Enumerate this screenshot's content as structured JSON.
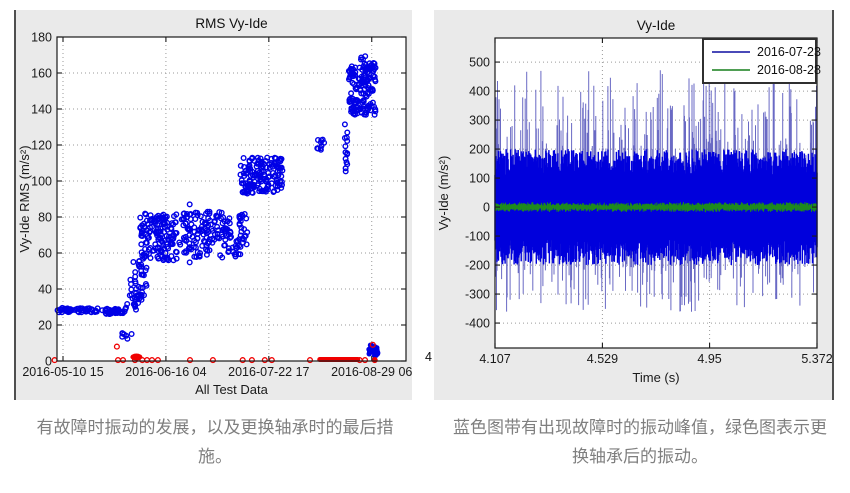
{
  "captions": {
    "left": "有故障时振动的发展，以及更换轴承时的最后措施。",
    "right": "蓝色图带有出现故障时的振动峰值，绿色图表示更换轴承后的振动。"
  },
  "colors": {
    "figure_bg": "#EAEAEA",
    "plot_bg": "#FFFFFF",
    "grid": "#9a9a9a",
    "axis": "#1a1a1a",
    "scatter_blue": "#0000E6",
    "marker_red": "#F00000",
    "signal_blue": "#0000DC",
    "signal_blue_light": "#6a6ac4",
    "signal_green": "#1E8A1E",
    "legend_blue": "#4A4AB8",
    "legend_green": "#4F9E53"
  },
  "chart_data": [
    {
      "type": "scatter",
      "title": "RMS Vy-Ide",
      "xlabel": "All Test Data",
      "ylabel": "Vy-Ide RMS  (m/s²)",
      "x_unit": "days since 2016-05-10 15:00",
      "xlim": [
        -2.15,
        122.9
      ],
      "ylim": [
        0,
        180
      ],
      "yticks": [
        0,
        20,
        40,
        60,
        80,
        100,
        120,
        140,
        160,
        180
      ],
      "xticks_days": [
        0,
        36.875,
        73.75,
        110.625
      ],
      "xtick_labels": [
        "2016-05-10 15",
        "2016-06-16 04",
        "2016-07-22 17",
        "2016-08-29 06"
      ],
      "grid": true,
      "series": [
        {
          "name": "rms-vibration-blue",
          "marker": "o",
          "clusters": [
            {
              "x0": -2.0,
              "x1": 12.5,
              "y0": 27,
              "y1": 29.5,
              "n": 55
            },
            {
              "x0": 14.0,
              "x1": 22.2,
              "y0": 26,
              "y1": 29,
              "n": 40
            },
            {
              "x0": 22.2,
              "x1": 27.5,
              "y0": 28,
              "y1": 38,
              "n": 16
            },
            {
              "x0": 25.0,
              "x1": 31.2,
              "y0": 30,
              "y1": 45,
              "n": 16
            },
            {
              "x0": 21.0,
              "x1": 24.7,
              "y0": 12,
              "y1": 16,
              "n": 7
            },
            {
              "x0": 24.0,
              "x1": 30.0,
              "y0": 38,
              "y1": 56,
              "n": 22
            },
            {
              "x0": 27.6,
              "x1": 40.8,
              "y0": 56,
              "y1": 82,
              "n": 150
            },
            {
              "x0": 41.0,
              "x1": 45.5,
              "y0": 54,
              "y1": 91,
              "n": 14
            },
            {
              "x0": 43.0,
              "x1": 66.2,
              "y0": 57,
              "y1": 83,
              "n": 170
            },
            {
              "x0": 63.4,
              "x1": 78.8,
              "y0": 93,
              "y1": 113,
              "n": 160
            },
            {
              "x0": 91.0,
              "x1": 94.5,
              "y0": 117,
              "y1": 123,
              "n": 10
            },
            {
              "x0": 100.8,
              "x1": 101.9,
              "y0": 104,
              "y1": 134,
              "n": 14
            },
            {
              "x0": 102.4,
              "x1": 112.0,
              "y0": 136,
              "y1": 164,
              "n": 140
            },
            {
              "x0": 106.0,
              "x1": 111.7,
              "y0": 158,
              "y1": 170,
              "n": 20
            },
            {
              "x0": 109.5,
              "x1": 112.8,
              "y0": 3,
              "y1": 9,
              "n": 24,
              "filled": true
            }
          ]
        },
        {
          "name": "fault-markers-red",
          "marker": "o",
          "points": [
            [
              -3,
              0.5
            ],
            [
              19.3,
              8
            ],
            [
              19.7,
              0.5
            ],
            [
              21.5,
              0.5
            ],
            [
              25.8,
              0.5
            ],
            [
              28.4,
              0.5
            ],
            [
              30.1,
              0.5
            ],
            [
              31.9,
              0.5
            ],
            [
              34,
              0.5
            ],
            [
              45.5,
              0.5
            ],
            [
              53.7,
              0.5
            ],
            [
              64.4,
              0.5
            ],
            [
              67.7,
              0.5
            ],
            [
              72.3,
              0.5
            ],
            [
              74.8,
              0.5
            ],
            [
              88.5,
              0.5
            ],
            [
              106.3,
              0.5
            ],
            [
              108.2,
              0.5
            ],
            [
              111.7,
              0.5,
              1
            ],
            [
              111,
              9
            ]
          ],
          "band": {
            "x0": 92,
            "x1": 105.6,
            "y": 0.8
          },
          "blob": {
            "x": 26.3,
            "y": 2.2
          }
        }
      ]
    },
    {
      "type": "line",
      "title": "Vy-Ide",
      "xlabel": "Time (s)",
      "ylabel": "Vy-Ide (m/s²)",
      "xlim": [
        4.107,
        5.372
      ],
      "ylim": [
        -486,
        583
      ],
      "yticks": [
        -400,
        -300,
        -200,
        -100,
        0,
        100,
        200,
        300,
        400,
        500
      ],
      "xticks": [
        4.107,
        4.529,
        4.95,
        5.372
      ],
      "xtick_labels": [
        "4.107",
        "4.529",
        "4.95",
        "5.372"
      ],
      "stray_left_label": "4",
      "grid": true,
      "legend": [
        {
          "label": "2016-07-23"
        },
        {
          "label": "2016-08-28"
        }
      ],
      "series": [
        {
          "name": "2016-07-23",
          "kind": "noisy-band",
          "seed": 7,
          "samples": 640,
          "base_amp": [
            110,
            200
          ],
          "spike_prob": 0.3,
          "spike_max": 472,
          "spike_neg_max": 362
        },
        {
          "name": "2016-08-28",
          "kind": "noisy-band",
          "seed": 11,
          "samples": 640,
          "base_amp": [
            4,
            15
          ],
          "center_jitter": 6
        }
      ]
    }
  ]
}
